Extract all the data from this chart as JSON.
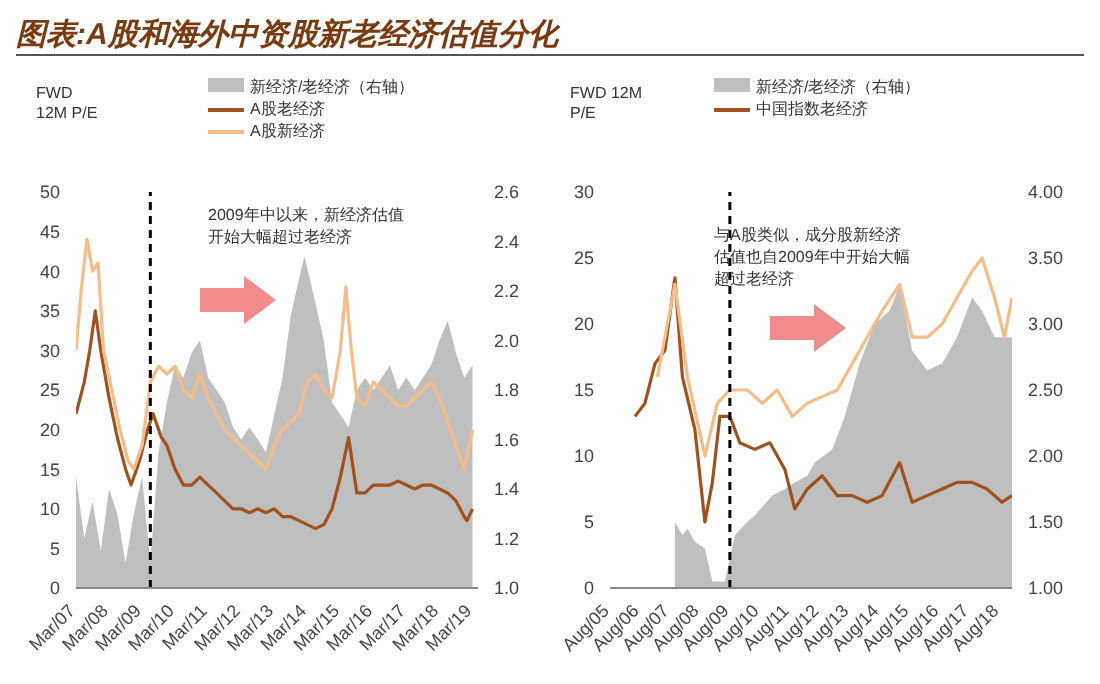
{
  "chart_data": [
    {
      "type": "line",
      "title": "图表:A股和海外中资股新老经济估值分化",
      "ylabel": "FWD\n12M P/E",
      "legend": "top",
      "xlim": [
        "2007-03",
        "2019-05"
      ],
      "xticks": [
        {
          "value": "2007-03",
          "label": "Mar/07"
        },
        {
          "value": "2008-03",
          "label": "Mar/08"
        },
        {
          "value": "2009-03",
          "label": "Mar/09"
        },
        {
          "value": "2010-03",
          "label": "Mar/10"
        },
        {
          "value": "2011-03",
          "label": "Mar/11"
        },
        {
          "value": "2012-03",
          "label": "Mar/12"
        },
        {
          "value": "2013-03",
          "label": "Mar/13"
        },
        {
          "value": "2014-03",
          "label": "Mar/14"
        },
        {
          "value": "2015-03",
          "label": "Mar/15"
        },
        {
          "value": "2016-03",
          "label": "Mar/16"
        },
        {
          "value": "2017-03",
          "label": "Mar/17"
        },
        {
          "value": "2018-03",
          "label": "Mar/18"
        },
        {
          "value": "2019-03",
          "label": "Mar/19"
        }
      ],
      "ylim": [
        0,
        50
      ],
      "yticks": [
        0,
        5,
        10,
        15,
        20,
        25,
        30,
        35,
        40,
        45,
        50
      ],
      "y2lim": [
        1.0,
        2.6
      ],
      "y2ticks": [
        {
          "value": 1.0,
          "label": "1.0"
        },
        {
          "value": 1.2,
          "label": "1.2"
        },
        {
          "value": 1.4,
          "label": "1.4"
        },
        {
          "value": 1.6,
          "label": "1.6"
        },
        {
          "value": 1.8,
          "label": "1.8"
        },
        {
          "value": 2.0,
          "label": "2.0"
        },
        {
          "value": 2.2,
          "label": "2.2"
        },
        {
          "value": 2.4,
          "label": "2.4"
        },
        {
          "value": 2.6,
          "label": "2.6"
        }
      ],
      "ref_lines": [
        {
          "axis": "x",
          "value": "2009-06",
          "color": "#000000",
          "line_style": "dashed"
        }
      ],
      "annotations": [
        "2009年中以来，新经济估值开始大幅超过老经济"
      ],
      "series": [
        {
          "name": "新经济/老经济（右轴）",
          "type": "area",
          "axis": "y2",
          "color": "#bfbfbf",
          "x": [
            "2007-03",
            "2007-06",
            "2007-09",
            "2007-12",
            "2008-03",
            "2008-06",
            "2008-09",
            "2008-12",
            "2009-03",
            "2009-06",
            "2009-09",
            "2009-12",
            "2010-03",
            "2010-06",
            "2010-09",
            "2010-12",
            "2011-03",
            "2011-06",
            "2011-09",
            "2011-12",
            "2012-03",
            "2012-06",
            "2012-09",
            "2012-12",
            "2013-03",
            "2013-06",
            "2013-09",
            "2013-12",
            "2014-02",
            "2014-06",
            "2014-09",
            "2014-12",
            "2015-03",
            "2015-06",
            "2015-09",
            "2015-12",
            "2016-03",
            "2016-06",
            "2016-09",
            "2016-12",
            "2017-03",
            "2017-06",
            "2017-09",
            "2017-12",
            "2018-03",
            "2018-06",
            "2018-09",
            "2018-12",
            "2019-03"
          ],
          "values": [
            1.45,
            1.2,
            1.35,
            1.15,
            1.4,
            1.3,
            1.1,
            1.3,
            1.45,
            1.1,
            1.55,
            1.75,
            1.9,
            1.85,
            1.95,
            2.0,
            1.85,
            1.8,
            1.75,
            1.65,
            1.6,
            1.65,
            1.6,
            1.55,
            1.7,
            1.85,
            2.1,
            2.25,
            2.34,
            2.15,
            2.0,
            1.75,
            1.7,
            1.65,
            1.8,
            1.85,
            1.8,
            1.85,
            1.9,
            1.8,
            1.85,
            1.8,
            1.85,
            1.9,
            2.0,
            2.08,
            1.95,
            1.85,
            1.9
          ]
        },
        {
          "name": "A股老经济",
          "color": "#a0521e",
          "x": [
            "2007-03",
            "2007-06",
            "2007-08",
            "2007-10",
            "2007-12",
            "2008-03",
            "2008-06",
            "2008-09",
            "2008-11",
            "2009-02",
            "2009-05",
            "2009-07",
            "2009-10",
            "2009-12",
            "2010-03",
            "2010-06",
            "2010-09",
            "2010-12",
            "2011-03",
            "2011-06",
            "2011-09",
            "2011-12",
            "2012-03",
            "2012-06",
            "2012-09",
            "2012-12",
            "2013-03",
            "2013-06",
            "2013-09",
            "2013-12",
            "2014-03",
            "2014-06",
            "2014-09",
            "2014-12",
            "2015-03",
            "2015-06",
            "2015-09",
            "2015-12",
            "2016-03",
            "2016-06",
            "2016-09",
            "2016-12",
            "2017-03",
            "2017-06",
            "2017-09",
            "2017-12",
            "2018-03",
            "2018-06",
            "2018-09",
            "2018-12",
            "2019-01",
            "2019-03"
          ],
          "values": [
            22,
            26,
            30,
            35,
            30,
            24,
            19,
            15,
            13,
            16,
            20,
            22,
            19,
            18,
            15,
            13,
            13,
            14,
            13,
            12,
            11,
            10,
            10,
            9.5,
            10,
            9.5,
            10,
            9,
            9,
            8.5,
            8,
            7.5,
            8,
            10,
            14,
            19,
            12,
            12,
            13,
            13,
            13,
            13.5,
            13,
            12.5,
            13,
            13,
            12.5,
            12,
            11,
            9,
            8.5,
            10
          ]
        },
        {
          "name": "A股新经济",
          "color": "#f5bd8a",
          "x": [
            "2007-03",
            "2007-05",
            "2007-07",
            "2007-09",
            "2007-11",
            "2008-01",
            "2008-04",
            "2008-07",
            "2008-10",
            "2008-12",
            "2009-03",
            "2009-06",
            "2009-09",
            "2009-12",
            "2010-03",
            "2010-06",
            "2010-09",
            "2010-12",
            "2011-03",
            "2011-06",
            "2011-09",
            "2011-12",
            "2012-03",
            "2012-06",
            "2012-09",
            "2012-12",
            "2013-03",
            "2013-06",
            "2013-09",
            "2013-12",
            "2014-03",
            "2014-06",
            "2014-09",
            "2014-12",
            "2015-03",
            "2015-05",
            "2015-07",
            "2015-09",
            "2015-12",
            "2016-03",
            "2016-06",
            "2016-09",
            "2016-12",
            "2017-03",
            "2017-06",
            "2017-09",
            "2017-12",
            "2018-03",
            "2018-06",
            "2018-09",
            "2018-12",
            "2019-03"
          ],
          "values": [
            30,
            38,
            44,
            40,
            41,
            30,
            25,
            20,
            16,
            15,
            18,
            26,
            28,
            27,
            28,
            25,
            24,
            27,
            24,
            22,
            20,
            19,
            18,
            17,
            16,
            15,
            18,
            20,
            21,
            22,
            26,
            27,
            25,
            24,
            30,
            38,
            30,
            24,
            23,
            26,
            25,
            24,
            23,
            23,
            24,
            25,
            26,
            24,
            21,
            18,
            15,
            20
          ]
        }
      ]
    },
    {
      "type": "line",
      "ylabel": "FWD 12M\nP/E",
      "legend": "top",
      "xlim": [
        "2005-08",
        "2019-01"
      ],
      "xticks": [
        {
          "value": "2005-08",
          "label": "Aug/05"
        },
        {
          "value": "2006-08",
          "label": "Aug/06"
        },
        {
          "value": "2007-08",
          "label": "Aug/07"
        },
        {
          "value": "2008-08",
          "label": "Aug/08"
        },
        {
          "value": "2009-08",
          "label": "Aug/09"
        },
        {
          "value": "2010-08",
          "label": "Aug/10"
        },
        {
          "value": "2011-08",
          "label": "Aug/11"
        },
        {
          "value": "2012-08",
          "label": "Aug/12"
        },
        {
          "value": "2013-08",
          "label": "Aug/13"
        },
        {
          "value": "2014-08",
          "label": "Aug/14"
        },
        {
          "value": "2015-08",
          "label": "Aug/15"
        },
        {
          "value": "2016-08",
          "label": "Aug/16"
        },
        {
          "value": "2017-08",
          "label": "Aug/17"
        },
        {
          "value": "2018-08",
          "label": "Aug/18"
        }
      ],
      "ylim": [
        0,
        30
      ],
      "yticks": [
        0,
        5,
        10,
        15,
        20,
        25,
        30
      ],
      "y2lim": [
        1.0,
        4.0
      ],
      "y2ticks": [
        {
          "value": 1.0,
          "label": "1.00"
        },
        {
          "value": 1.5,
          "label": "1.50"
        },
        {
          "value": 2.0,
          "label": "2.00"
        },
        {
          "value": 2.5,
          "label": "2.50"
        },
        {
          "value": 3.0,
          "label": "3.00"
        },
        {
          "value": 3.5,
          "label": "3.50"
        },
        {
          "value": 4.0,
          "label": "4.00"
        }
      ],
      "ref_lines": [
        {
          "axis": "x",
          "value": "2009-08",
          "color": "#000000",
          "line_style": "dashed"
        }
      ],
      "annotations": [
        "与A股类似，成分股新经济估值也自2009年中开始大幅超过老经济"
      ],
      "series": [
        {
          "name": "新经济/老经济（右轴）",
          "type": "area",
          "axis": "y2",
          "color": "#bfbfbf",
          "x": [
            "2007-10",
            "2008-01",
            "2008-03",
            "2008-06",
            "2008-10",
            "2009-01",
            "2009-06",
            "2009-10",
            "2010-03",
            "2010-06",
            "2011-01",
            "2011-06",
            "2011-10",
            "2012-03",
            "2012-06",
            "2013-01",
            "2013-06",
            "2013-12",
            "2014-06",
            "2014-12",
            "2015-04",
            "2015-09",
            "2016-03",
            "2016-09",
            "2017-03",
            "2017-09",
            "2018-01",
            "2018-06",
            "2019-01"
          ],
          "values": [
            1.5,
            1.4,
            1.45,
            1.35,
            1.3,
            1.05,
            1.05,
            1.4,
            1.5,
            1.55,
            1.7,
            1.75,
            1.8,
            1.85,
            1.95,
            2.05,
            2.3,
            2.7,
            3.0,
            3.1,
            3.3,
            2.8,
            2.65,
            2.7,
            2.9,
            3.2,
            3.1,
            2.9,
            2.9
          ]
        },
        {
          "name": "中国指数老经济",
          "color": "#a0521e",
          "x": [
            "2006-06",
            "2006-10",
            "2007-02",
            "2007-06",
            "2007-10",
            "2008-01",
            "2008-06",
            "2008-10",
            "2009-01",
            "2009-04",
            "2009-08",
            "2009-12",
            "2010-06",
            "2010-12",
            "2011-06",
            "2011-10",
            "2012-03",
            "2012-09",
            "2013-03",
            "2013-09",
            "2014-03",
            "2014-09",
            "2015-04",
            "2015-09",
            "2016-03",
            "2016-09",
            "2017-03",
            "2017-09",
            "2018-03",
            "2018-09",
            "2019-01"
          ],
          "values": [
            13,
            14,
            17,
            18,
            23.5,
            16,
            12,
            5,
            8,
            13,
            13,
            11,
            10.5,
            11,
            9,
            6,
            7.5,
            8.5,
            7,
            7,
            6.5,
            7,
            9.5,
            6.5,
            7,
            7.5,
            8,
            8,
            7.5,
            6.5,
            7
          ]
        },
        {
          "color": "#f5bd8a",
          "x": [
            "2007-03",
            "2007-10",
            "2008-03",
            "2008-10",
            "2009-03",
            "2009-08",
            "2010-03",
            "2010-09",
            "2011-03",
            "2011-09",
            "2012-03",
            "2012-09",
            "2013-03",
            "2013-09",
            "2014-03",
            "2014-09",
            "2015-04",
            "2015-09",
            "2016-03",
            "2016-09",
            "2017-03",
            "2017-09",
            "2018-01",
            "2018-06",
            "2018-10",
            "2019-01"
          ],
          "values": [
            16,
            23,
            16,
            10,
            14,
            15,
            15,
            14,
            15,
            13,
            14,
            14.5,
            15,
            17,
            19,
            21,
            23,
            19,
            19,
            20,
            22,
            24,
            25,
            22,
            19,
            22
          ]
        }
      ]
    }
  ]
}
